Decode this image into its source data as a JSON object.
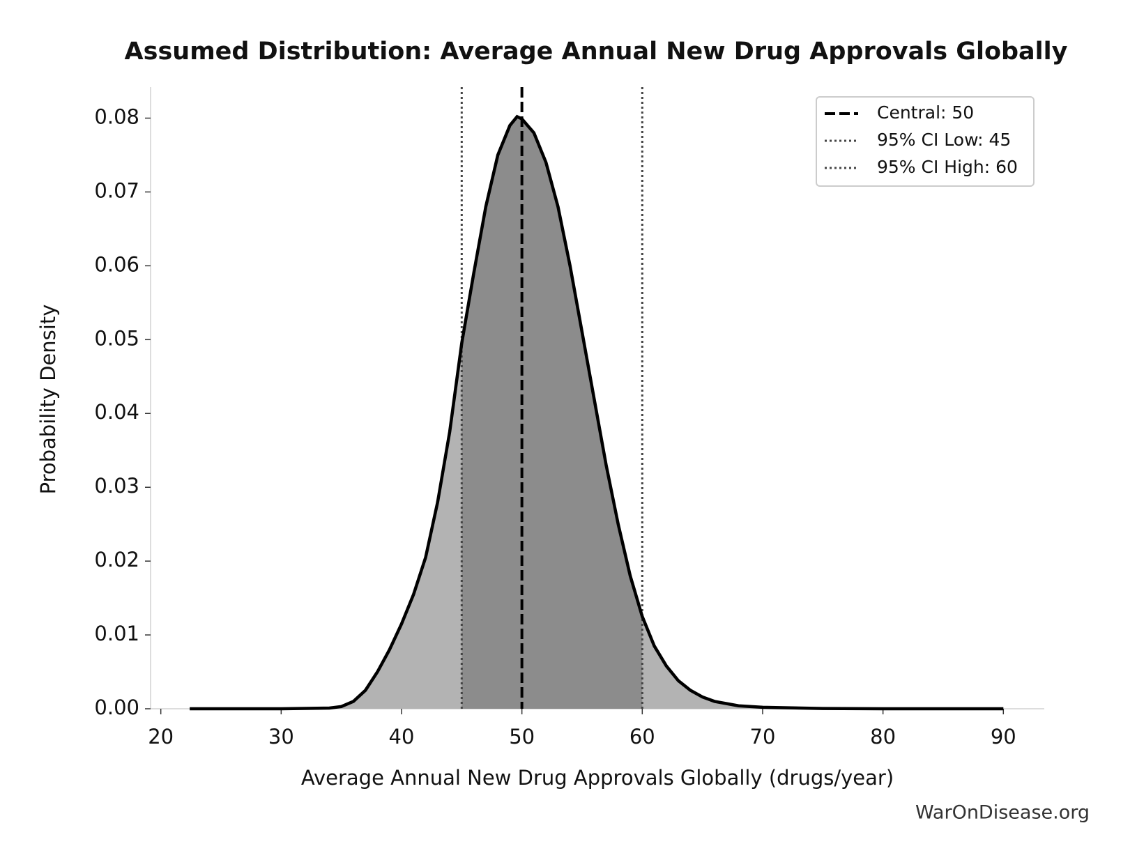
{
  "chart_data": {
    "type": "area",
    "title": "Assumed Distribution: Average Annual New Drug Approvals Globally",
    "x_label": "Average Annual New Drug Approvals Globally (drugs/year)",
    "y_label": "Probability Density",
    "watermark": "WarOnDisease.org",
    "x": [
      22.4,
      26,
      30,
      34,
      35,
      36,
      37,
      38,
      39,
      40,
      41,
      42,
      43,
      44,
      45,
      46,
      47,
      48,
      49,
      49.6,
      50,
      51,
      52,
      53,
      54,
      55,
      56,
      57,
      58,
      59,
      60,
      61,
      62,
      63,
      64,
      65,
      66,
      68,
      70,
      75,
      80,
      90
    ],
    "values": [
      0,
      0,
      0,
      0.0001,
      0.0003,
      0.001,
      0.0025,
      0.005,
      0.008,
      0.0115,
      0.0155,
      0.0205,
      0.028,
      0.0375,
      0.0495,
      0.059,
      0.068,
      0.075,
      0.079,
      0.0802,
      0.0799,
      0.078,
      0.074,
      0.068,
      0.06,
      0.051,
      0.042,
      0.033,
      0.025,
      0.018,
      0.0125,
      0.0085,
      0.0058,
      0.0038,
      0.0025,
      0.0016,
      0.001,
      0.0004,
      0.0002,
      3e-05,
      0,
      0
    ],
    "color": "#000000",
    "fill_color": "#b3b3b3",
    "ci_fill_color": "#8c8c8c",
    "ref_lines": [
      {
        "label": "Central: 50",
        "value": 50,
        "style": "dashed",
        "color": "#000000"
      },
      {
        "label": "95% CI Low: 45",
        "value": 45,
        "style": "dotted",
        "color": "#444444"
      },
      {
        "label": "95% CI High: 60",
        "value": 60,
        "style": "dotted",
        "color": "#444444"
      }
    ],
    "ci_range": [
      45,
      60
    ],
    "xlim": [
      19.15,
      93.4
    ],
    "ylim": [
      0,
      0.0842
    ],
    "xticks": [
      20,
      30,
      40,
      50,
      60,
      70,
      80,
      90
    ],
    "yticks": [
      {
        "value": 0,
        "label": "0.00"
      },
      {
        "value": 0.01,
        "label": "0.01"
      },
      {
        "value": 0.02,
        "label": "0.02"
      },
      {
        "value": 0.03,
        "label": "0.03"
      },
      {
        "value": 0.04,
        "label": "0.04"
      },
      {
        "value": 0.05,
        "label": "0.05"
      },
      {
        "value": 0.06,
        "label": "0.06"
      },
      {
        "value": 0.07,
        "label": "0.07"
      },
      {
        "value": 0.08,
        "label": "0.08"
      }
    ],
    "legend_position": "upper right"
  }
}
